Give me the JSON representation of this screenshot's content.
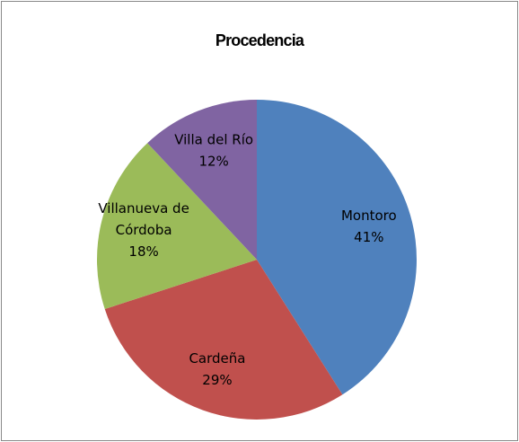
{
  "chart_data": {
    "type": "pie",
    "title": "Procedencia",
    "categories": [
      "Montoro",
      "Cardeña",
      "Villanueva de Córdoba",
      "Villa del Río"
    ],
    "values": [
      41,
      29,
      18,
      12
    ],
    "value_labels": [
      "41%",
      "29%",
      "18%",
      "12%"
    ],
    "colors": [
      "#4f81bd",
      "#c0504d",
      "#9bbb59",
      "#8064a2"
    ]
  }
}
